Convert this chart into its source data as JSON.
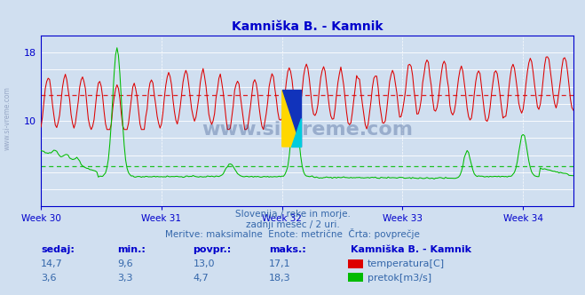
{
  "title": "Kamniška B. - Kamnik",
  "bg_color": "#d0dff0",
  "plot_bg_color": "#d0dff0",
  "temp_color": "#dd0000",
  "flow_color": "#00bb00",
  "grid_color": "#ffffff",
  "axis_color": "#0000cc",
  "temp_avg": 13.0,
  "flow_avg": 4.7,
  "temp_min": 9.6,
  "temp_max": 17.1,
  "flow_min": 3.3,
  "flow_max": 18.3,
  "temp_current": 14.7,
  "flow_current": 3.6,
  "ylim_temp": [
    6,
    20
  ],
  "ylim_flow": [
    0,
    20
  ],
  "yticks_show": [
    10,
    18
  ],
  "xlabel_weeks": [
    "Week 30",
    "Week 31",
    "Week 32",
    "Week 33",
    "Week 34"
  ],
  "n_points": 372,
  "week_ticks": [
    0,
    84,
    168,
    252,
    336
  ],
  "subtitle1": "Slovenija / reke in morje.",
  "subtitle2": "zadnji mesec / 2 uri.",
  "subtitle3": "Meritve: maksimalne  Enote: metrične  Črta: povprečje",
  "footer_label1": "sedaj:",
  "footer_label2": "min.:",
  "footer_label3": "povpr.:",
  "footer_label4": "maks.:",
  "footer_station": "Kamniška B. - Kamnik",
  "footer_temp_label": "temperatura[C]",
  "footer_flow_label": "pretok[m3/s]",
  "watermark": "www.si-vreme.com",
  "watermark_color": "#1a3a7a",
  "side_watermark_color": "#8899bb"
}
